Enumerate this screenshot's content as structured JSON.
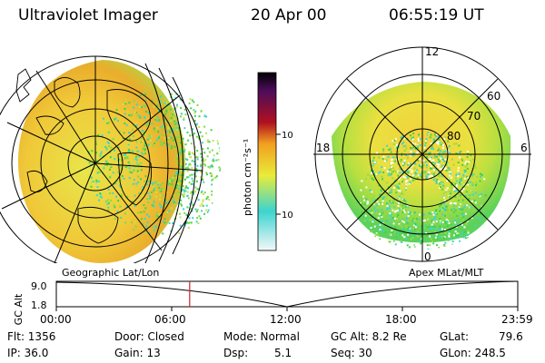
{
  "header": {
    "title": "Ultraviolet Imager",
    "date": "20 Apr 00",
    "time": "06:55:19 UT"
  },
  "colorbar": {
    "unit_label": "photon cm⁻²s⁻¹",
    "ticks": [
      "100",
      "10"
    ],
    "scale": "log"
  },
  "geo_panel": {
    "caption": "Geographic Lat/Lon"
  },
  "polar_panel": {
    "caption": "Apex MLat/MLT",
    "mlt_labels": [
      "12",
      "18",
      "6",
      "0"
    ],
    "mlat_labels": [
      "60",
      "70",
      "80"
    ]
  },
  "altitude_track": {
    "axis_label": "GC Alt",
    "y_ticks": [
      "9.0",
      "1.8"
    ],
    "x_ticks": [
      "00:00",
      "06:00",
      "12:00",
      "18:00",
      "23:59"
    ],
    "marker_time_fraction": 0.289
  },
  "status": {
    "flt": "Flt: 1356",
    "ip": "IP: 36.0",
    "door": "Door: Closed",
    "gain": "Gain: 13",
    "mode": "Mode: Normal",
    "dsp_label": "Dsp:",
    "dsp_value": "5.1",
    "gc_alt": "GC Alt: 8.2 Re",
    "seq": "Seq: 30",
    "glat": "GLat:",
    "glat_value": "79.6",
    "glon": "GLon: 248.5"
  },
  "colors": {
    "cb_top": "#000000",
    "cb_purple": "#4b0d5a",
    "cb_red": "#b01020",
    "cb_orange": "#f2a020",
    "cb_yellow": "#e8ec3a",
    "cb_green": "#3fd24a",
    "cb_cyan": "#3cd4d0",
    "cb_white": "#f4f8f8",
    "marker": "#cc2222"
  }
}
